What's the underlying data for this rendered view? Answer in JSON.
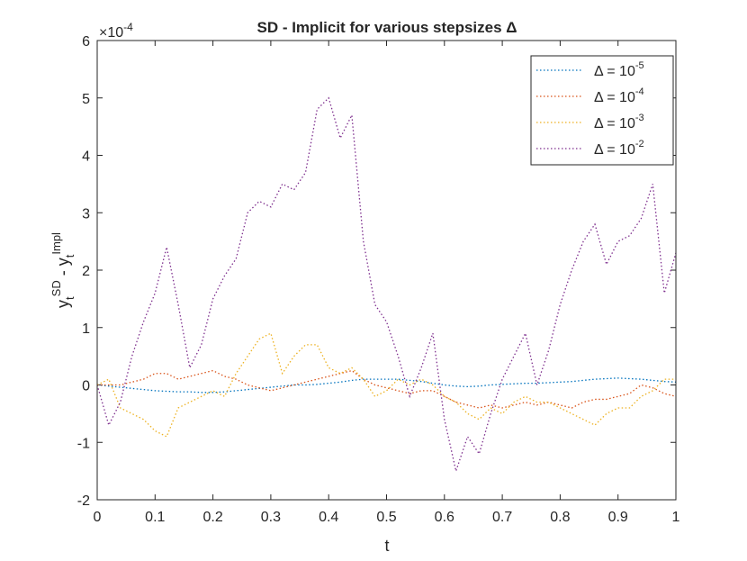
{
  "chart_data": {
    "type": "line",
    "title": "SD - Implicit for various stepsizes Δ",
    "xlabel": "t",
    "ylabel": [
      {
        "text": "y",
        "pos": "base"
      },
      {
        "text": "t",
        "pos": "sub"
      },
      {
        "text": "SD",
        "pos": "sup"
      },
      {
        "text": " - y",
        "pos": "base"
      },
      {
        "text": "t",
        "pos": "sub"
      },
      {
        "text": "Impl",
        "pos": "sup"
      }
    ],
    "y_exponent": {
      "base": "×10",
      "power": "-4"
    },
    "x": [
      0,
      0.02,
      0.04,
      0.06,
      0.08,
      0.1,
      0.12,
      0.14,
      0.16,
      0.18,
      0.2,
      0.22,
      0.24,
      0.26,
      0.28,
      0.3,
      0.32,
      0.34,
      0.36,
      0.38,
      0.4,
      0.42,
      0.44,
      0.46,
      0.48,
      0.5,
      0.52,
      0.54,
      0.56,
      0.58,
      0.6,
      0.62,
      0.64,
      0.66,
      0.68,
      0.7,
      0.72,
      0.74,
      0.76,
      0.78,
      0.8,
      0.82,
      0.84,
      0.86,
      0.88,
      0.9,
      0.92,
      0.94,
      0.96,
      0.98,
      1
    ],
    "series": [
      {
        "name": "Δ = 10",
        "power": "-5",
        "color": "#0072bd",
        "values": [
          0,
          -0.02,
          -0.04,
          -0.06,
          -0.08,
          -0.1,
          -0.11,
          -0.12,
          -0.12,
          -0.13,
          -0.13,
          -0.12,
          -0.1,
          -0.08,
          -0.06,
          -0.04,
          -0.02,
          0,
          0,
          0.01,
          0.03,
          0.05,
          0.08,
          0.1,
          0.1,
          0.1,
          0.1,
          0.08,
          0.06,
          0.03,
          0,
          -0.02,
          -0.03,
          -0.02,
          0,
          0.01,
          0.02,
          0.03,
          0.03,
          0.04,
          0.05,
          0.06,
          0.08,
          0.1,
          0.11,
          0.12,
          0.11,
          0.1,
          0.08,
          0.06,
          0.05
        ]
      },
      {
        "name": "Δ = 10",
        "power": "-4",
        "color": "#d95319",
        "values": [
          0,
          0,
          0,
          0.05,
          0.1,
          0.2,
          0.2,
          0.1,
          0.15,
          0.2,
          0.25,
          0.15,
          0.1,
          0,
          -0.05,
          -0.1,
          -0.05,
          0,
          0.05,
          0.1,
          0.15,
          0.2,
          0.25,
          0.1,
          0,
          -0.05,
          -0.1,
          -0.15,
          -0.1,
          -0.1,
          -0.2,
          -0.3,
          -0.35,
          -0.4,
          -0.35,
          -0.4,
          -0.35,
          -0.3,
          -0.35,
          -0.3,
          -0.35,
          -0.4,
          -0.3,
          -0.25,
          -0.25,
          -0.2,
          -0.15,
          0,
          -0.05,
          -0.15,
          -0.2
        ]
      },
      {
        "name": "Δ = 10",
        "power": "-3",
        "color": "#edb120",
        "values": [
          0,
          0.1,
          -0.4,
          -0.5,
          -0.6,
          -0.8,
          -0.9,
          -0.4,
          -0.3,
          -0.2,
          -0.1,
          -0.2,
          0.2,
          0.5,
          0.8,
          0.9,
          0.2,
          0.5,
          0.7,
          0.7,
          0.3,
          0.2,
          0.3,
          0.1,
          -0.2,
          -0.1,
          0.1,
          0,
          0.1,
          0,
          -0.2,
          -0.3,
          -0.5,
          -0.6,
          -0.4,
          -0.5,
          -0.3,
          -0.2,
          -0.3,
          -0.3,
          -0.4,
          -0.5,
          -0.6,
          -0.7,
          -0.5,
          -0.4,
          -0.4,
          -0.2,
          -0.1,
          0.1,
          0.1
        ]
      },
      {
        "name": "Δ = 10",
        "power": "-2",
        "color": "#7e2f8e",
        "values": [
          0,
          -0.7,
          -0.3,
          0.5,
          1.1,
          1.6,
          2.4,
          1.4,
          0.3,
          0.7,
          1.5,
          1.9,
          2.2,
          3.0,
          3.2,
          3.1,
          3.5,
          3.4,
          3.7,
          4.8,
          5.0,
          4.3,
          4.7,
          2.5,
          1.4,
          1.1,
          0.5,
          -0.2,
          0.3,
          0.9,
          -0.6,
          -1.5,
          -0.9,
          -1.2,
          -0.5,
          0.1,
          0.5,
          0.9,
          0,
          0.6,
          1.4,
          2.0,
          2.5,
          2.8,
          2.1,
          2.5,
          2.6,
          2.9,
          3.5,
          1.6,
          2.3
        ]
      }
    ],
    "xlim": [
      0,
      1
    ],
    "xticks": [
      0,
      0.1,
      0.2,
      0.3,
      0.4,
      0.5,
      0.6,
      0.7,
      0.8,
      0.9,
      1
    ],
    "ylim": [
      -2,
      6
    ],
    "yticks": [
      -2,
      -1,
      0,
      1,
      2,
      3,
      4,
      5,
      6
    ],
    "grid": false,
    "legend": "top-right",
    "line_style": "dotted"
  }
}
